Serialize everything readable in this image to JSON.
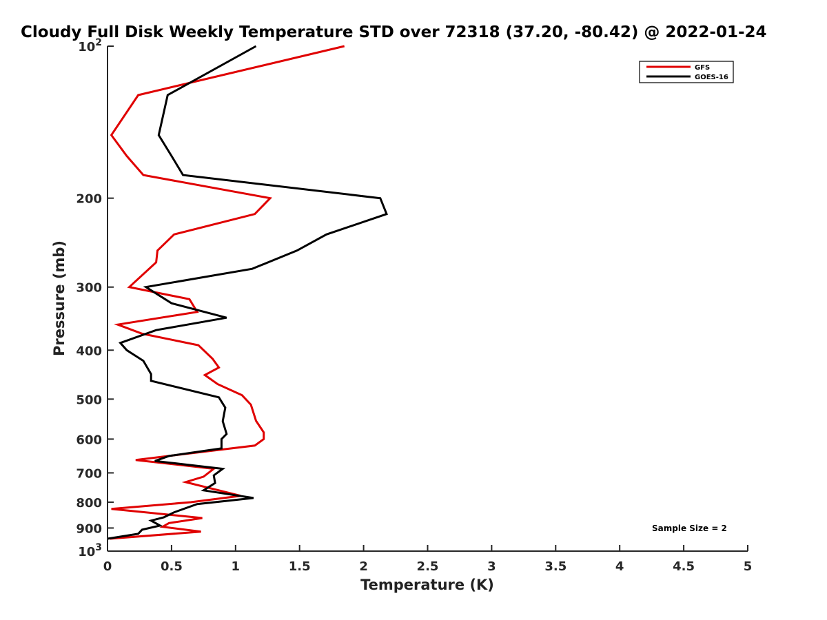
{
  "chart_data": {
    "type": "line",
    "title": "Cloudy Full Disk Weekly Temperature STD over 72318 (37.20, -80.42) @ 2022-01-24",
    "xlabel": "Temperature (K)",
    "ylabel": "Pressure (mb)",
    "xlim": [
      0,
      5
    ],
    "ylim": [
      100,
      1000
    ],
    "yscale": "log",
    "y_reversed": true,
    "grid": false,
    "legend_position": "top-right",
    "x_ticks": [
      "0",
      "0.5",
      "1",
      "1.5",
      "2",
      "2.5",
      "3",
      "3.5",
      "4",
      "4.5",
      "5"
    ],
    "x_tick_values": [
      0,
      0.5,
      1,
      1.5,
      2,
      2.5,
      3,
      3.5,
      4,
      4.5,
      5
    ],
    "y_ticks": [
      {
        "value": 100,
        "base": "10",
        "exp": "2"
      },
      {
        "value": 200,
        "label": "200"
      },
      {
        "value": 300,
        "label": "300"
      },
      {
        "value": 400,
        "label": "400"
      },
      {
        "value": 500,
        "label": "500"
      },
      {
        "value": 600,
        "label": "600"
      },
      {
        "value": 700,
        "label": "700"
      },
      {
        "value": 800,
        "label": "800"
      },
      {
        "value": 900,
        "label": "900"
      },
      {
        "value": 1000,
        "base": "10",
        "exp": "3"
      }
    ],
    "annotation": "Sample Size = 2",
    "series": [
      {
        "name": "GFS",
        "color": "#e00000",
        "points": [
          [
            1.85,
            100
          ],
          [
            0.24,
            125
          ],
          [
            0.03,
            150
          ],
          [
            0.15,
            165
          ],
          [
            0.28,
            180
          ],
          [
            1.27,
            200
          ],
          [
            1.15,
            215
          ],
          [
            0.52,
            236
          ],
          [
            0.39,
            254
          ],
          [
            0.38,
            268
          ],
          [
            0.17,
            300
          ],
          [
            0.64,
            317
          ],
          [
            0.7,
            336
          ],
          [
            0.08,
            356
          ],
          [
            0.27,
            371
          ],
          [
            0.71,
            391
          ],
          [
            0.82,
            416
          ],
          [
            0.87,
            433
          ],
          [
            0.76,
            448
          ],
          [
            0.86,
            467
          ],
          [
            1.05,
            491
          ],
          [
            1.12,
            513
          ],
          [
            1.16,
            552
          ],
          [
            1.22,
            582
          ],
          [
            1.22,
            600
          ],
          [
            1.15,
            618
          ],
          [
            0.22,
            660
          ],
          [
            0.83,
            687
          ],
          [
            0.75,
            712
          ],
          [
            0.61,
            730
          ],
          [
            1.04,
            777
          ],
          [
            0.65,
            800
          ],
          [
            0.03,
            825
          ],
          [
            0.74,
            860
          ],
          [
            0.48,
            880
          ],
          [
            0.43,
            895
          ],
          [
            0.73,
            915
          ],
          [
            0.02,
            945
          ]
        ]
      },
      {
        "name": "GOES-16",
        "color": "#000000",
        "points": [
          [
            1.16,
            100
          ],
          [
            0.47,
            125
          ],
          [
            0.4,
            150
          ],
          [
            0.5,
            165
          ],
          [
            0.59,
            180
          ],
          [
            2.13,
            200
          ],
          [
            2.18,
            215
          ],
          [
            1.71,
            236
          ],
          [
            1.48,
            254
          ],
          [
            1.13,
            276
          ],
          [
            0.3,
            300
          ],
          [
            0.5,
            323
          ],
          [
            0.93,
            345
          ],
          [
            0.38,
            365
          ],
          [
            0.1,
            387
          ],
          [
            0.15,
            400
          ],
          [
            0.28,
            420
          ],
          [
            0.34,
            446
          ],
          [
            0.34,
            460
          ],
          [
            0.87,
            496
          ],
          [
            0.92,
            520
          ],
          [
            0.9,
            553
          ],
          [
            0.93,
            586
          ],
          [
            0.89,
            600
          ],
          [
            0.89,
            626
          ],
          [
            0.48,
            648
          ],
          [
            0.37,
            663
          ],
          [
            0.9,
            687
          ],
          [
            0.83,
            708
          ],
          [
            0.84,
            733
          ],
          [
            0.75,
            758
          ],
          [
            1.14,
            785
          ],
          [
            0.7,
            807
          ],
          [
            0.52,
            838
          ],
          [
            0.44,
            857
          ],
          [
            0.34,
            870
          ],
          [
            0.41,
            890
          ],
          [
            0.27,
            907
          ],
          [
            0.24,
            924
          ],
          [
            0.0,
            945
          ]
        ]
      }
    ]
  }
}
